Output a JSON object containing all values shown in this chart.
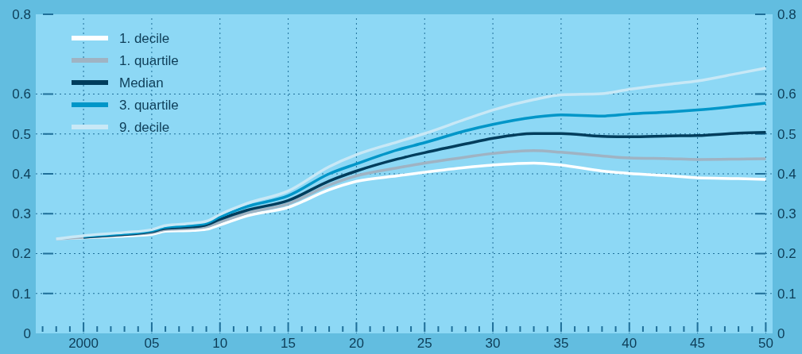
{
  "chart_data": {
    "type": "line",
    "x": [
      1998,
      2000,
      2003,
      2005,
      2006,
      2008,
      2009,
      2010,
      2012,
      2015,
      2018,
      2020,
      2023,
      2025,
      2028,
      2030,
      2033,
      2035,
      2038,
      2040,
      2043,
      2045,
      2048,
      2050
    ],
    "series": [
      {
        "name": "1. decile",
        "color": "#ffffff",
        "values": [
          0.237,
          0.24,
          0.244,
          0.248,
          0.256,
          0.258,
          0.261,
          0.272,
          0.295,
          0.316,
          0.36,
          0.381,
          0.395,
          0.404,
          0.416,
          0.422,
          0.427,
          0.422,
          0.407,
          0.401,
          0.395,
          0.39,
          0.388,
          0.386
        ]
      },
      {
        "name": "1. quartile",
        "color": "#9fb3c3",
        "values": [
          0.237,
          0.241,
          0.247,
          0.252,
          0.26,
          0.263,
          0.267,
          0.279,
          0.302,
          0.325,
          0.372,
          0.395,
          0.415,
          0.427,
          0.442,
          0.451,
          0.458,
          0.454,
          0.445,
          0.44,
          0.438,
          0.436,
          0.437,
          0.438
        ]
      },
      {
        "name": "Median",
        "color": "#003d5c",
        "values": [
          null,
          0.241,
          0.248,
          0.255,
          0.263,
          0.267,
          0.272,
          0.286,
          0.309,
          0.333,
          0.382,
          0.407,
          0.437,
          0.453,
          0.475,
          0.489,
          0.501,
          0.501,
          0.494,
          0.493,
          0.495,
          0.496,
          0.502,
          0.504
        ]
      },
      {
        "name": "3. quartile",
        "color": "#0096c8",
        "values": [
          null,
          0.243,
          0.25,
          0.257,
          0.266,
          0.271,
          0.276,
          0.292,
          0.318,
          0.345,
          0.4,
          0.425,
          0.46,
          0.478,
          0.508,
          0.524,
          0.542,
          0.548,
          0.545,
          0.55,
          0.555,
          0.56,
          0.57,
          0.577
        ]
      },
      {
        "name": "9. decile",
        "color": "#c8e8f6",
        "values": [
          0.237,
          0.245,
          0.253,
          0.26,
          0.27,
          0.276,
          0.281,
          0.298,
          0.326,
          0.357,
          0.418,
          0.448,
          0.48,
          0.501,
          0.537,
          0.56,
          0.586,
          0.598,
          0.601,
          0.612,
          0.625,
          0.633,
          0.652,
          0.665
        ]
      }
    ],
    "xlim": [
      1996.5,
      2050.5
    ],
    "xticks": [
      {
        "value": 1997,
        "label": null
      },
      {
        "value": 1998,
        "label": null
      },
      {
        "value": 1999,
        "label": null
      },
      2000,
      {
        "value": 2001,
        "label": null
      },
      {
        "value": 2002,
        "label": null
      },
      {
        "value": 2003,
        "label": null
      },
      {
        "value": 2004,
        "label": null
      },
      {
        "value": 2005,
        "label": "05"
      },
      {
        "value": 2006,
        "label": null
      },
      {
        "value": 2007,
        "label": null
      },
      {
        "value": 2008,
        "label": null
      },
      {
        "value": 2009,
        "label": null
      },
      {
        "value": 2010,
        "label": "10"
      },
      {
        "value": 2011,
        "label": null
      },
      {
        "value": 2012,
        "label": null
      },
      {
        "value": 2013,
        "label": null
      },
      {
        "value": 2014,
        "label": null
      },
      {
        "value": 2015,
        "label": "15"
      },
      {
        "value": 2016,
        "label": null
      },
      {
        "value": 2017,
        "label": null
      },
      {
        "value": 2018,
        "label": null
      },
      {
        "value": 2019,
        "label": null
      },
      {
        "value": 2020,
        "label": "20"
      },
      {
        "value": 2021,
        "label": null
      },
      {
        "value": 2022,
        "label": null
      },
      {
        "value": 2023,
        "label": null
      },
      {
        "value": 2024,
        "label": null
      },
      {
        "value": 2025,
        "label": "25"
      },
      {
        "value": 2026,
        "label": null
      },
      {
        "value": 2027,
        "label": null
      },
      {
        "value": 2028,
        "label": null
      },
      {
        "value": 2029,
        "label": null
      },
      {
        "value": 2030,
        "label": "30"
      },
      {
        "value": 2031,
        "label": null
      },
      {
        "value": 2032,
        "label": null
      },
      {
        "value": 2033,
        "label": null
      },
      {
        "value": 2034,
        "label": null
      },
      {
        "value": 2035,
        "label": "35"
      },
      {
        "value": 2036,
        "label": null
      },
      {
        "value": 2037,
        "label": null
      },
      {
        "value": 2038,
        "label": null
      },
      {
        "value": 2039,
        "label": null
      },
      {
        "value": 2040,
        "label": "40"
      },
      {
        "value": 2041,
        "label": null
      },
      {
        "value": 2042,
        "label": null
      },
      {
        "value": 2043,
        "label": null
      },
      {
        "value": 2044,
        "label": null
      },
      {
        "value": 2045,
        "label": "45"
      },
      {
        "value": 2046,
        "label": null
      },
      {
        "value": 2047,
        "label": null
      },
      {
        "value": 2048,
        "label": null
      },
      {
        "value": 2049,
        "label": null
      },
      {
        "value": 2050,
        "label": "50"
      }
    ],
    "ylim": [
      0,
      0.8
    ],
    "yticks": [
      0,
      0.1,
      0.2,
      0.3,
      0.4,
      0.5,
      0.6,
      0.8
    ],
    "y2lim": [
      0,
      0.8
    ],
    "y2ticks": [
      0,
      0.1,
      0.2,
      0.3,
      0.4,
      0.5,
      0.6,
      0.8
    ],
    "grid": true,
    "legend": "top left",
    "marker": "none",
    "line_style": "solid"
  }
}
